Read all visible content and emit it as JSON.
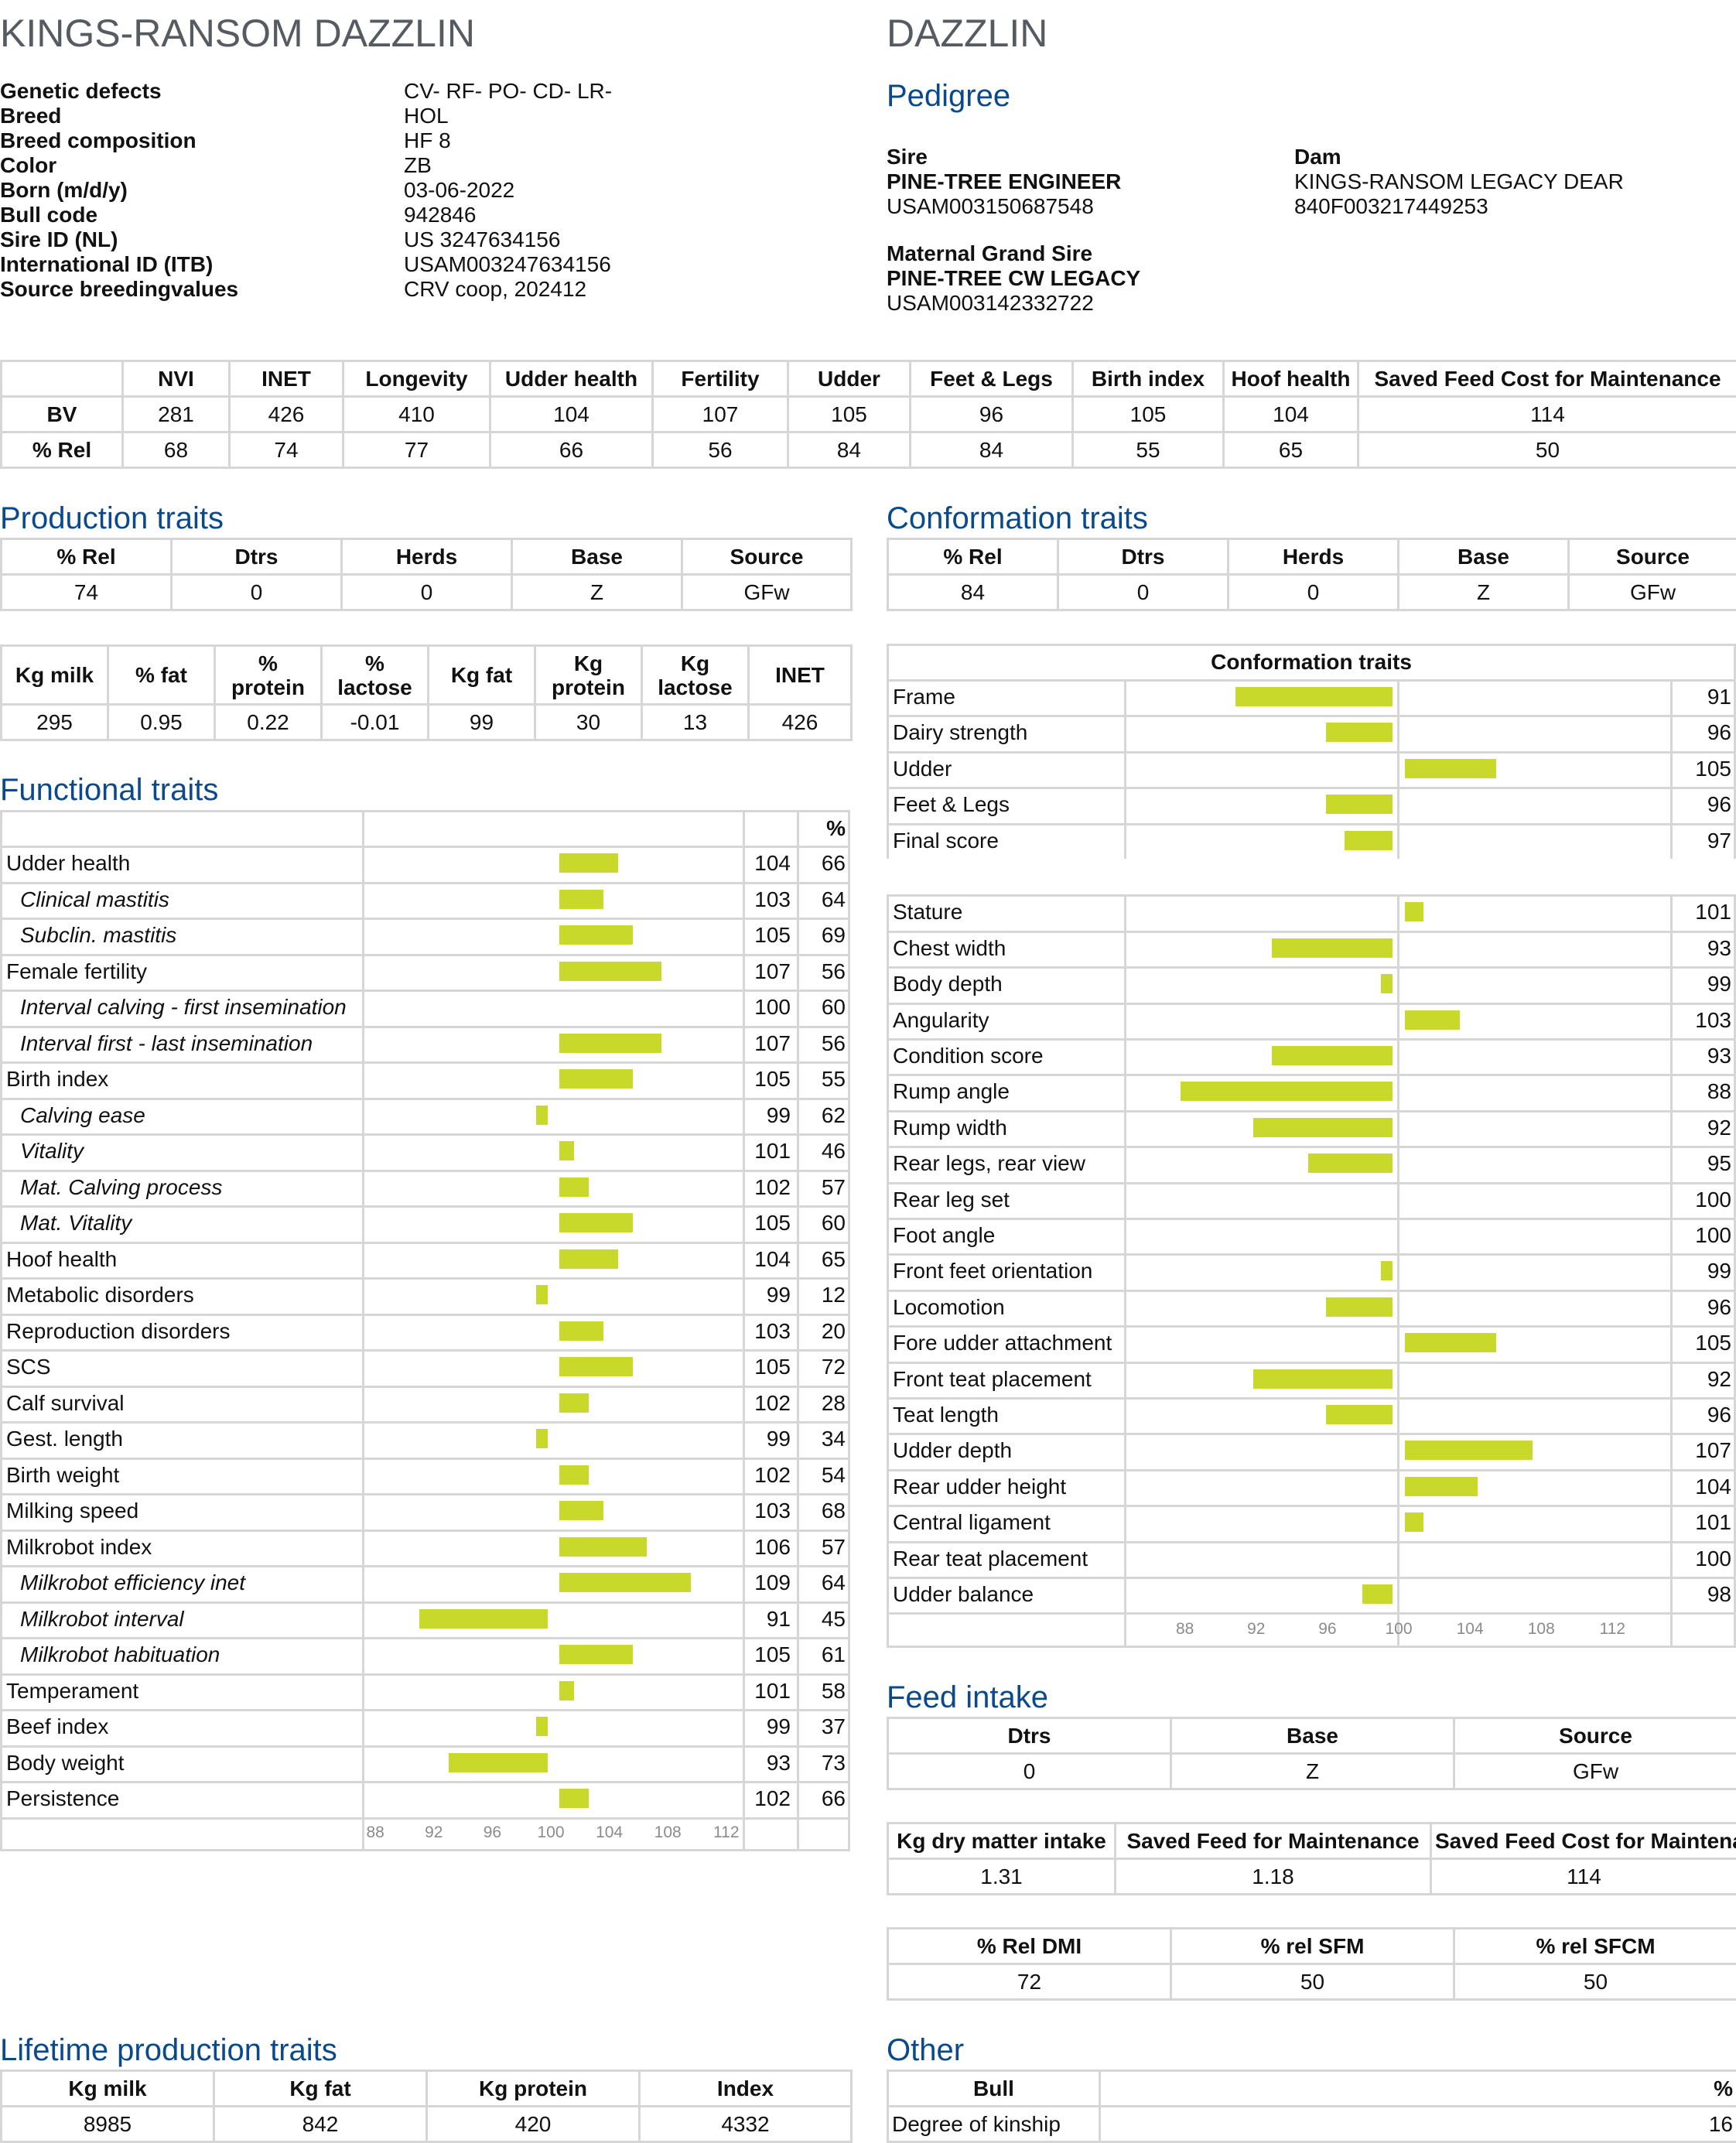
{
  "header": {
    "title_left": "KINGS-RANSOM DAZZLIN",
    "title_right": "DAZZLIN"
  },
  "info": [
    {
      "label": "Genetic defects",
      "value": "CV- RF- PO- CD- LR-"
    },
    {
      "label": "Breed",
      "value": "HOL"
    },
    {
      "label": "Breed composition",
      "value": "HF 8"
    },
    {
      "label": "Color",
      "value": "ZB"
    },
    {
      "label": "Born (m/d/y)",
      "value": "03-06-2022"
    },
    {
      "label": "Bull code",
      "value": "942846"
    },
    {
      "label": "Sire ID (NL)",
      "value": "US 3247634156"
    },
    {
      "label": "International ID (ITB)",
      "value": "USAM003247634156"
    },
    {
      "label": "Source breedingvalues",
      "value": "CRV coop, 202412"
    }
  ],
  "pedigree": {
    "heading": "Pedigree",
    "sire_label": "Sire",
    "sire_name": "PINE-TREE ENGINEER",
    "sire_id": "USAM003150687548",
    "dam_label": "Dam",
    "dam_name": "KINGS-RANSOM LEGACY DEAR",
    "dam_id": "840F003217449253",
    "mgs_label": "Maternal Grand Sire",
    "mgs_name": "PINE-TREE CW LEGACY",
    "mgs_id": "USAM003142332722"
  },
  "summary": {
    "headers": [
      "",
      "NVI",
      "INET",
      "Longevity",
      "Udder health",
      "Fertility",
      "Udder",
      "Feet & Legs",
      "Birth index",
      "Hoof health",
      "Saved Feed Cost for Maintenance"
    ],
    "rows": [
      [
        "BV",
        "281",
        "426",
        "410",
        "104",
        "107",
        "105",
        "96",
        "105",
        "104",
        "114"
      ],
      [
        "% Rel",
        "68",
        "74",
        "77",
        "66",
        "56",
        "84",
        "84",
        "55",
        "65",
        "50"
      ]
    ]
  },
  "production": {
    "heading": "Production traits",
    "rel_headers": [
      "% Rel",
      "Dtrs",
      "Herds",
      "Base",
      "Source"
    ],
    "rel_values": [
      "74",
      "0",
      "0",
      "Z",
      "GFw"
    ],
    "headers": [
      "Kg milk",
      "% fat",
      "% protein",
      "% lactose",
      "Kg fat",
      "Kg protein",
      "Kg lactose",
      "INET"
    ],
    "values": [
      "295",
      "0.95",
      "0.22",
      "-0.01",
      "99",
      "30",
      "13",
      "426"
    ]
  },
  "functional": {
    "heading": "Functional traits",
    "pct_header": "%",
    "axis_ticks": [
      "88",
      "92",
      "96",
      "100",
      "104",
      "108",
      "112"
    ],
    "rows": [
      {
        "label": "Udder health",
        "sub": false,
        "bv": "104",
        "rel": "66"
      },
      {
        "label": "Clinical mastitis",
        "sub": true,
        "bv": "103",
        "rel": "64"
      },
      {
        "label": "Subclin. mastitis",
        "sub": true,
        "bv": "105",
        "rel": "69"
      },
      {
        "label": "Female fertility",
        "sub": false,
        "bv": "107",
        "rel": "56"
      },
      {
        "label": "Interval calving - first insemination",
        "sub": true,
        "bv": "100",
        "rel": "60"
      },
      {
        "label": "Interval first - last insemination",
        "sub": true,
        "bv": "107",
        "rel": "56"
      },
      {
        "label": "Birth index",
        "sub": false,
        "bv": "105",
        "rel": "55"
      },
      {
        "label": "Calving ease",
        "sub": true,
        "bv": "99",
        "rel": "62"
      },
      {
        "label": "Vitality",
        "sub": true,
        "bv": "101",
        "rel": "46"
      },
      {
        "label": "Mat. Calving process",
        "sub": true,
        "bv": "102",
        "rel": "57"
      },
      {
        "label": "Mat. Vitality",
        "sub": true,
        "bv": "105",
        "rel": "60"
      },
      {
        "label": "Hoof health",
        "sub": false,
        "bv": "104",
        "rel": "65"
      },
      {
        "label": "Metabolic disorders",
        "sub": false,
        "bv": "99",
        "rel": "12"
      },
      {
        "label": "Reproduction disorders",
        "sub": false,
        "bv": "103",
        "rel": "20"
      },
      {
        "label": "SCS",
        "sub": false,
        "bv": "105",
        "rel": "72"
      },
      {
        "label": "Calf survival",
        "sub": false,
        "bv": "102",
        "rel": "28"
      },
      {
        "label": "Gest. length",
        "sub": false,
        "bv": "99",
        "rel": "34"
      },
      {
        "label": "Birth weight",
        "sub": false,
        "bv": "102",
        "rel": "54"
      },
      {
        "label": "Milking speed",
        "sub": false,
        "bv": "103",
        "rel": "68"
      },
      {
        "label": "Milkrobot index",
        "sub": false,
        "bv": "106",
        "rel": "57"
      },
      {
        "label": "Milkrobot efficiency inet",
        "sub": true,
        "bv": "109",
        "rel": "64"
      },
      {
        "label": "Milkrobot interval",
        "sub": true,
        "bv": "91",
        "rel": "45"
      },
      {
        "label": "Milkrobot habituation",
        "sub": true,
        "bv": "105",
        "rel": "61"
      },
      {
        "label": "Temperament",
        "sub": false,
        "bv": "101",
        "rel": "58"
      },
      {
        "label": "Beef index",
        "sub": false,
        "bv": "99",
        "rel": "37"
      },
      {
        "label": "Body weight",
        "sub": false,
        "bv": "93",
        "rel": "73"
      },
      {
        "label": "Persistence",
        "sub": false,
        "bv": "102",
        "rel": "66"
      }
    ]
  },
  "conformation": {
    "heading": "Conformation traits",
    "rel_headers": [
      "% Rel",
      "Dtrs",
      "Herds",
      "Base",
      "Source"
    ],
    "rel_values": [
      "84",
      "0",
      "0",
      "Z",
      "GFw"
    ],
    "table_title": "Conformation traits",
    "axis_ticks": [
      "88",
      "92",
      "96",
      "100",
      "104",
      "108",
      "112"
    ],
    "rows": [
      {
        "label": "Frame",
        "bv": "91"
      },
      {
        "label": "Dairy strength",
        "bv": "96"
      },
      {
        "label": "Udder",
        "bv": "105"
      },
      {
        "label": "Feet & Legs",
        "bv": "96"
      },
      {
        "label": "Final score",
        "bv": "97"
      },
      {
        "label": "",
        "bv": ""
      },
      {
        "label": "Stature",
        "bv": "101"
      },
      {
        "label": "Chest width",
        "bv": "93"
      },
      {
        "label": "Body depth",
        "bv": "99"
      },
      {
        "label": "Angularity",
        "bv": "103"
      },
      {
        "label": "Condition score",
        "bv": "93"
      },
      {
        "label": "Rump angle",
        "bv": "88"
      },
      {
        "label": "Rump width",
        "bv": "92"
      },
      {
        "label": "Rear legs, rear view",
        "bv": "95"
      },
      {
        "label": "Rear leg set",
        "bv": "100"
      },
      {
        "label": "Foot angle",
        "bv": "100"
      },
      {
        "label": "Front feet orientation",
        "bv": "99"
      },
      {
        "label": "Locomotion",
        "bv": "96"
      },
      {
        "label": "Fore udder attachment",
        "bv": "105"
      },
      {
        "label": "Front teat placement",
        "bv": "92"
      },
      {
        "label": "Teat length",
        "bv": "96"
      },
      {
        "label": "Udder depth",
        "bv": "107"
      },
      {
        "label": "Rear udder height",
        "bv": "104"
      },
      {
        "label": "Central ligament",
        "bv": "101"
      },
      {
        "label": "Rear teat placement",
        "bv": "100"
      },
      {
        "label": "Udder balance",
        "bv": "98"
      }
    ]
  },
  "feed": {
    "heading": "Feed intake",
    "headers1": [
      "Dtrs",
      "Base",
      "Source"
    ],
    "values1": [
      "0",
      "Z",
      "GFw"
    ],
    "headers2": [
      "Kg dry matter intake",
      "Saved Feed for Maintenance",
      "Saved Feed Cost for Maintenance"
    ],
    "values2": [
      "1.31",
      "1.18",
      "114"
    ],
    "headers3": [
      "% Rel DMI",
      "% rel SFM",
      "% rel SFCM"
    ],
    "values3": [
      "72",
      "50",
      "50"
    ]
  },
  "lifetime": {
    "heading": "Lifetime production traits",
    "headers": [
      "Kg milk",
      "Kg fat",
      "Kg protein",
      "Index"
    ],
    "values": [
      "8985",
      "842",
      "420",
      "4332"
    ]
  },
  "other": {
    "heading": "Other",
    "headers": [
      "Bull",
      "%"
    ],
    "rows": [
      [
        "Degree of kinship",
        "16"
      ]
    ]
  },
  "colors": {
    "bar": "#c8d92b",
    "heading": "#0a4a8c",
    "title": "#555b61",
    "grid": "#d6d6d6"
  }
}
